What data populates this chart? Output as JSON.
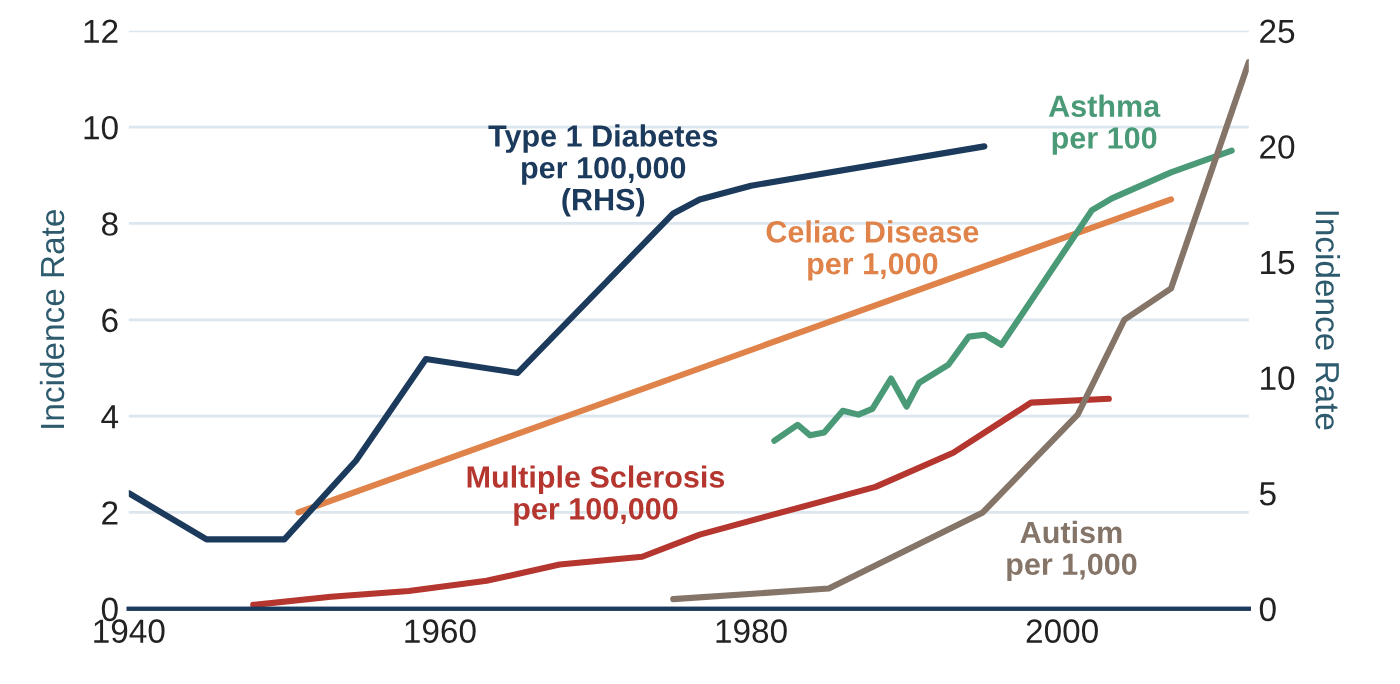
{
  "chart_data": {
    "type": "line",
    "ylabel": "Incidence Rate",
    "y2label": "Incidence Rate",
    "xlim": [
      1940,
      2012
    ],
    "xticks": [
      1940,
      1960,
      1980,
      2000
    ],
    "ylim": [
      0,
      12
    ],
    "yticks": [
      0,
      2,
      4,
      6,
      8,
      10,
      12
    ],
    "y2lim": [
      0,
      25
    ],
    "y2ticks": [
      0,
      5,
      10,
      15,
      20,
      25
    ],
    "grid": "y",
    "legend": false,
    "marker": "none",
    "line_style": "solid",
    "series": [
      {
        "name": "Type 1 Diabetes\nper 100,000\n(RHS)",
        "color": "#1b3a5c",
        "axis": "y2",
        "x": [
          1940,
          1945,
          1950,
          1954.6,
          1959.1,
          1965,
          1975,
          1976.7,
          1980,
          1995
        ],
        "values": [
          5.0,
          3.0,
          3.0,
          6.4,
          10.8,
          10.2,
          17.1,
          17.7,
          18.3,
          20.0
        ]
      },
      {
        "name": "Celiac Disease\nper 1,000",
        "color": "#e0834a",
        "x": [
          1950.9,
          2007
        ],
        "values": [
          2.0,
          8.5
        ]
      },
      {
        "name": "Multiple Sclerosis\nper 100,000",
        "color": "#b5352f",
        "x": [
          1948,
          1953,
          1958,
          1963,
          1967.7,
          1973,
          1976.7,
          1984.7,
          1988,
          1993,
          1998,
          2003
        ],
        "values": [
          0.08,
          0.25,
          0.37,
          0.58,
          0.92,
          1.08,
          1.54,
          2.24,
          2.53,
          3.24,
          4.28,
          4.36
        ]
      },
      {
        "name": "Asthma\nper 100",
        "color": "#4a9a78",
        "x": [
          1981.5,
          1983,
          1983.8,
          1984.7,
          1985.9,
          1986.9,
          1987.8,
          1989,
          1990,
          1990.8,
          1992.7,
          1994,
          1995,
          1996.1,
          2001.9,
          2003.2,
          2007,
          2010.9
        ],
        "values": [
          3.49,
          3.82,
          3.6,
          3.66,
          4.11,
          4.03,
          4.15,
          4.78,
          4.2,
          4.69,
          5.07,
          5.65,
          5.69,
          5.48,
          8.27,
          8.52,
          9.06,
          9.51
        ]
      },
      {
        "name": "Autism\nper 1,000",
        "color": "#857468",
        "x": [
          1975,
          1985,
          1994.9,
          2001,
          2004,
          2007,
          2012
        ],
        "values": [
          0.2,
          0.42,
          2.0,
          4.03,
          6.0,
          6.65,
          11.35
        ]
      }
    ]
  }
}
